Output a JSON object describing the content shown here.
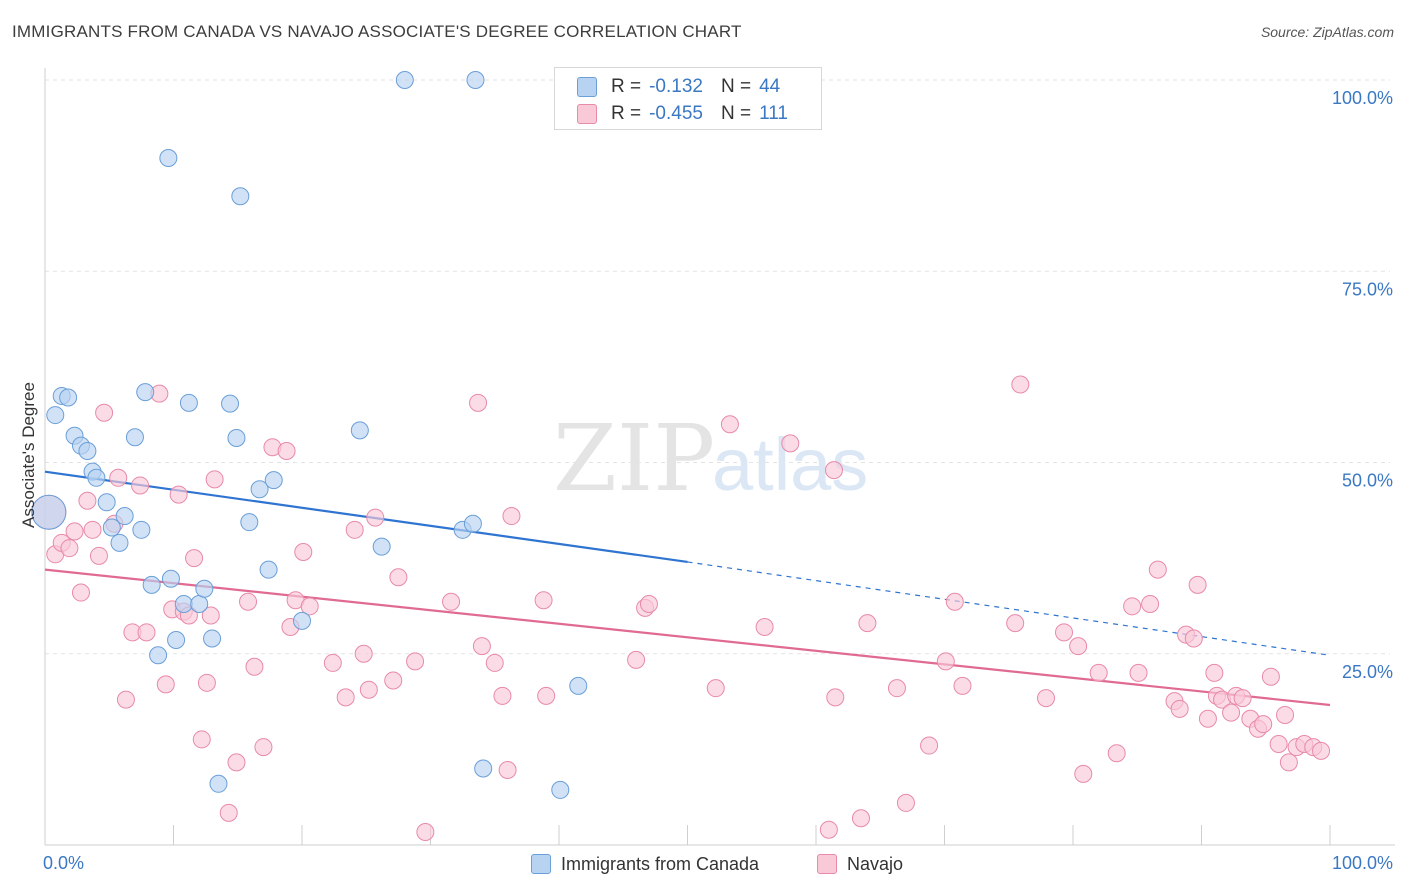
{
  "title": "IMMIGRANTS FROM CANADA VS NAVAJO ASSOCIATE'S DEGREE CORRELATION CHART",
  "source": "Source: ZipAtlas.com",
  "legend": {
    "rows": [
      {
        "r_label": "R =",
        "r_value": "-0.132",
        "n_label": "N =",
        "n_value": "44",
        "fill": "#b8d3f2",
        "stroke": "#6a9fd8"
      },
      {
        "r_label": "R =",
        "r_value": "-0.455",
        "n_label": "N =",
        "n_value": "111",
        "fill": "#f9c9d8",
        "stroke": "#e88aa8"
      }
    ]
  },
  "bottom_legend": {
    "series1": "Immigrants from Canada",
    "series2": "Navajo"
  },
  "watermark": "ZIPatlas",
  "chart_data": {
    "type": "scatter",
    "title": "IMMIGRANTS FROM CANADA VS NAVAJO ASSOCIATE'S DEGREE CORRELATION CHART",
    "xlabel": "",
    "ylabel": "Associate's Degree",
    "xlim": [
      0,
      100
    ],
    "ylim": [
      0,
      100
    ],
    "x_tick_labels": [
      "0.0%",
      "100.0%"
    ],
    "y_tick_labels": [
      "25.0%",
      "50.0%",
      "75.0%",
      "100.0%"
    ],
    "y_ticks": [
      25,
      50,
      75,
      100
    ],
    "grid": true,
    "legend_position": "top-center",
    "series": [
      {
        "name": "Immigrants from Canada",
        "color": "#6a9fd8",
        "fill": "#b8d3f2",
        "r": -0.132,
        "n": 44,
        "trend": {
          "x0": 0,
          "y0": 48.8,
          "x1": 50,
          "y1": 37.0,
          "dashed_to_x": 100,
          "dashed_to_y": 24.8
        },
        "points": [
          {
            "x": 0.3,
            "y": 43.5,
            "big": true
          },
          {
            "x": 0.8,
            "y": 56.2
          },
          {
            "x": 1.3,
            "y": 58.7
          },
          {
            "x": 1.8,
            "y": 58.5
          },
          {
            "x": 2.3,
            "y": 53.5
          },
          {
            "x": 2.8,
            "y": 52.2
          },
          {
            "x": 3.3,
            "y": 51.5
          },
          {
            "x": 3.7,
            "y": 48.8
          },
          {
            "x": 4.0,
            "y": 48.0
          },
          {
            "x": 4.8,
            "y": 44.8
          },
          {
            "x": 5.2,
            "y": 41.5
          },
          {
            "x": 5.8,
            "y": 39.5
          },
          {
            "x": 6.2,
            "y": 43.0
          },
          {
            "x": 7.0,
            "y": 53.3
          },
          {
            "x": 7.5,
            "y": 41.2
          },
          {
            "x": 7.8,
            "y": 59.2
          },
          {
            "x": 8.3,
            "y": 34.0
          },
          {
            "x": 8.8,
            "y": 24.8
          },
          {
            "x": 9.6,
            "y": 89.8
          },
          {
            "x": 9.8,
            "y": 34.8
          },
          {
            "x": 10.2,
            "y": 26.8
          },
          {
            "x": 10.8,
            "y": 31.5
          },
          {
            "x": 11.2,
            "y": 57.8
          },
          {
            "x": 12.0,
            "y": 31.5
          },
          {
            "x": 12.4,
            "y": 33.5
          },
          {
            "x": 13.0,
            "y": 27.0
          },
          {
            "x": 13.5,
            "y": 8.0
          },
          {
            "x": 14.4,
            "y": 57.7
          },
          {
            "x": 14.9,
            "y": 53.2
          },
          {
            "x": 15.2,
            "y": 84.8
          },
          {
            "x": 15.9,
            "y": 42.2
          },
          {
            "x": 16.7,
            "y": 46.5
          },
          {
            "x": 17.4,
            "y": 36.0
          },
          {
            "x": 17.8,
            "y": 47.7
          },
          {
            "x": 20.0,
            "y": 29.3
          },
          {
            "x": 24.5,
            "y": 54.2
          },
          {
            "x": 26.2,
            "y": 39.0
          },
          {
            "x": 28.0,
            "y": 100.0
          },
          {
            "x": 32.5,
            "y": 41.2
          },
          {
            "x": 33.3,
            "y": 42.0
          },
          {
            "x": 33.5,
            "y": 100.0
          },
          {
            "x": 34.1,
            "y": 10.0
          },
          {
            "x": 40.1,
            "y": 7.2
          },
          {
            "x": 41.5,
            "y": 20.8
          }
        ]
      },
      {
        "name": "Navajo",
        "color": "#e88aa8",
        "fill": "#f9c9d8",
        "r": -0.455,
        "n": 111,
        "trend": {
          "x0": 0,
          "y0": 36.0,
          "x1": 100,
          "y1": 18.3
        },
        "points": [
          {
            "x": 0.3,
            "y": 43.5,
            "big": true
          },
          {
            "x": 0.8,
            "y": 38.0
          },
          {
            "x": 1.3,
            "y": 39.5
          },
          {
            "x": 1.9,
            "y": 38.8
          },
          {
            "x": 2.3,
            "y": 41.0
          },
          {
            "x": 2.8,
            "y": 33.0
          },
          {
            "x": 3.3,
            "y": 45.0
          },
          {
            "x": 3.7,
            "y": 41.2
          },
          {
            "x": 4.2,
            "y": 37.8
          },
          {
            "x": 4.6,
            "y": 56.5
          },
          {
            "x": 5.4,
            "y": 42.0
          },
          {
            "x": 5.7,
            "y": 48.0
          },
          {
            "x": 6.3,
            "y": 19.0
          },
          {
            "x": 6.8,
            "y": 27.8
          },
          {
            "x": 7.4,
            "y": 47.0
          },
          {
            "x": 7.9,
            "y": 27.8
          },
          {
            "x": 8.9,
            "y": 59.0
          },
          {
            "x": 9.4,
            "y": 21.0
          },
          {
            "x": 9.9,
            "y": 30.8
          },
          {
            "x": 10.4,
            "y": 45.8
          },
          {
            "x": 10.8,
            "y": 30.5
          },
          {
            "x": 11.2,
            "y": 30.0
          },
          {
            "x": 11.6,
            "y": 37.5
          },
          {
            "x": 12.2,
            "y": 13.8
          },
          {
            "x": 12.6,
            "y": 21.2
          },
          {
            "x": 12.9,
            "y": 30.0
          },
          {
            "x": 13.2,
            "y": 47.8
          },
          {
            "x": 14.3,
            "y": 4.2
          },
          {
            "x": 14.9,
            "y": 10.8
          },
          {
            "x": 15.8,
            "y": 31.8
          },
          {
            "x": 16.3,
            "y": 23.3
          },
          {
            "x": 17.0,
            "y": 12.8
          },
          {
            "x": 17.7,
            "y": 52.0
          },
          {
            "x": 18.8,
            "y": 51.5
          },
          {
            "x": 19.1,
            "y": 28.5
          },
          {
            "x": 19.5,
            "y": 32.0
          },
          {
            "x": 20.1,
            "y": 38.3
          },
          {
            "x": 20.6,
            "y": 31.2
          },
          {
            "x": 22.4,
            "y": 23.8
          },
          {
            "x": 23.4,
            "y": 19.3
          },
          {
            "x": 24.1,
            "y": 41.2
          },
          {
            "x": 24.8,
            "y": 25.0
          },
          {
            "x": 25.2,
            "y": 20.3
          },
          {
            "x": 25.7,
            "y": 42.8
          },
          {
            "x": 27.1,
            "y": 21.5
          },
          {
            "x": 27.5,
            "y": 35.0
          },
          {
            "x": 28.8,
            "y": 24.0
          },
          {
            "x": 29.6,
            "y": 1.7
          },
          {
            "x": 31.6,
            "y": 31.8
          },
          {
            "x": 33.7,
            "y": 57.8
          },
          {
            "x": 34.0,
            "y": 26.0
          },
          {
            "x": 35.0,
            "y": 23.8
          },
          {
            "x": 35.6,
            "y": 19.5
          },
          {
            "x": 36.0,
            "y": 9.8
          },
          {
            "x": 36.3,
            "y": 43.0
          },
          {
            "x": 38.8,
            "y": 32.0
          },
          {
            "x": 39.0,
            "y": 19.5
          },
          {
            "x": 46.0,
            "y": 24.2
          },
          {
            "x": 46.7,
            "y": 31.0
          },
          {
            "x": 47.0,
            "y": 31.5
          },
          {
            "x": 52.2,
            "y": 20.5
          },
          {
            "x": 53.3,
            "y": 55.0
          },
          {
            "x": 56.0,
            "y": 28.5
          },
          {
            "x": 58.0,
            "y": 52.5
          },
          {
            "x": 61.0,
            "y": 2.0
          },
          {
            "x": 61.4,
            "y": 49.0
          },
          {
            "x": 61.5,
            "y": 19.3
          },
          {
            "x": 63.5,
            "y": 3.5
          },
          {
            "x": 64.0,
            "y": 29.0
          },
          {
            "x": 66.3,
            "y": 20.5
          },
          {
            "x": 67.0,
            "y": 5.5
          },
          {
            "x": 68.8,
            "y": 13.0
          },
          {
            "x": 70.1,
            "y": 24.0
          },
          {
            "x": 70.8,
            "y": 31.8
          },
          {
            "x": 71.4,
            "y": 20.8
          },
          {
            "x": 75.5,
            "y": 29.0
          },
          {
            "x": 75.9,
            "y": 60.2
          },
          {
            "x": 77.9,
            "y": 19.2
          },
          {
            "x": 79.3,
            "y": 27.8
          },
          {
            "x": 80.4,
            "y": 26.0
          },
          {
            "x": 80.8,
            "y": 9.3
          },
          {
            "x": 82.0,
            "y": 22.5
          },
          {
            "x": 83.4,
            "y": 12.0
          },
          {
            "x": 84.6,
            "y": 31.2
          },
          {
            "x": 85.1,
            "y": 22.5
          },
          {
            "x": 86.0,
            "y": 31.5
          },
          {
            "x": 86.6,
            "y": 36.0
          },
          {
            "x": 87.9,
            "y": 18.8
          },
          {
            "x": 88.3,
            "y": 17.8
          },
          {
            "x": 88.8,
            "y": 27.5
          },
          {
            "x": 89.4,
            "y": 27.0
          },
          {
            "x": 89.7,
            "y": 34.0
          },
          {
            "x": 90.5,
            "y": 16.5
          },
          {
            "x": 91.0,
            "y": 22.5
          },
          {
            "x": 91.2,
            "y": 19.5
          },
          {
            "x": 91.6,
            "y": 19.0
          },
          {
            "x": 92.3,
            "y": 17.3
          },
          {
            "x": 92.7,
            "y": 19.5
          },
          {
            "x": 93.2,
            "y": 19.2
          },
          {
            "x": 93.8,
            "y": 16.5
          },
          {
            "x": 94.4,
            "y": 15.2
          },
          {
            "x": 94.8,
            "y": 15.8
          },
          {
            "x": 95.4,
            "y": 22.0
          },
          {
            "x": 96.0,
            "y": 13.2
          },
          {
            "x": 96.5,
            "y": 17.0
          },
          {
            "x": 96.8,
            "y": 10.8
          },
          {
            "x": 97.4,
            "y": 12.8
          },
          {
            "x": 98.0,
            "y": 13.2
          },
          {
            "x": 98.7,
            "y": 12.8
          },
          {
            "x": 99.3,
            "y": 12.3
          }
        ]
      }
    ]
  }
}
